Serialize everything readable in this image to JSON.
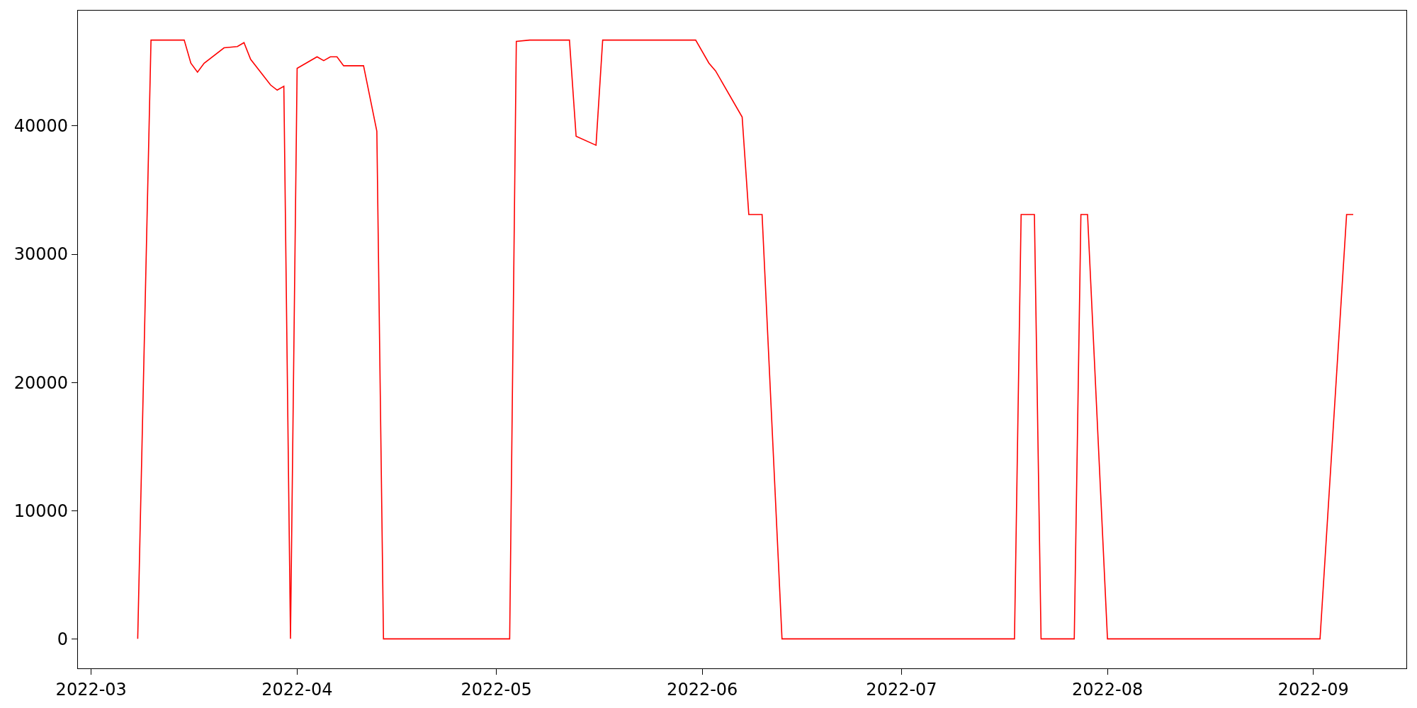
{
  "chart_data": {
    "type": "line",
    "x": [
      "2022-03-08",
      "2022-03-10",
      "2022-03-15",
      "2022-03-16",
      "2022-03-17",
      "2022-03-18",
      "2022-03-21",
      "2022-03-23",
      "2022-03-24",
      "2022-03-25",
      "2022-03-28",
      "2022-03-29",
      "2022-03-30",
      "2022-03-31",
      "2022-04-01",
      "2022-04-04",
      "2022-04-05",
      "2022-04-06",
      "2022-04-07",
      "2022-04-08",
      "2022-04-11",
      "2022-04-13",
      "2022-04-14",
      "2022-05-03",
      "2022-05-04",
      "2022-05-06",
      "2022-05-12",
      "2022-05-13",
      "2022-05-16",
      "2022-05-17",
      "2022-05-31",
      "2022-06-02",
      "2022-06-03",
      "2022-06-07",
      "2022-06-08",
      "2022-06-10",
      "2022-06-13",
      "2022-07-18",
      "2022-07-19",
      "2022-07-21",
      "2022-07-22",
      "2022-07-27",
      "2022-07-28",
      "2022-07-29",
      "2022-08-01",
      "2022-09-02",
      "2022-09-06",
      "2022-09-07"
    ],
    "series": [
      {
        "color": "#ff0000",
        "values": [
          0,
          46700,
          46700,
          44900,
          44200,
          44900,
          46100,
          46200,
          46500,
          45200,
          43200,
          42800,
          43100,
          0,
          44500,
          45400,
          45100,
          45400,
          45400,
          44700,
          44700,
          39600,
          0,
          0,
          46600,
          46700,
          46700,
          39200,
          38500,
          46700,
          46700,
          44900,
          44300,
          40700,
          33100,
          33100,
          0,
          0,
          33100,
          33100,
          0,
          0,
          33100,
          33100,
          0,
          0,
          33100,
          33100
        ]
      }
    ],
    "xlim": [
      "2022-02-27",
      "2022-09-15"
    ],
    "xticks": [
      {
        "value": "2022-03-01",
        "label": "2022-03"
      },
      {
        "value": "2022-04-01",
        "label": "2022-04"
      },
      {
        "value": "2022-05-01",
        "label": "2022-05"
      },
      {
        "value": "2022-06-01",
        "label": "2022-06"
      },
      {
        "value": "2022-07-01",
        "label": "2022-07"
      },
      {
        "value": "2022-08-01",
        "label": "2022-08"
      },
      {
        "value": "2022-09-01",
        "label": "2022-09"
      }
    ],
    "ylim": [
      -2300,
      49000
    ],
    "yticks": [
      0,
      10000,
      20000,
      30000,
      40000
    ],
    "marker": "none",
    "line_style": "solid"
  }
}
